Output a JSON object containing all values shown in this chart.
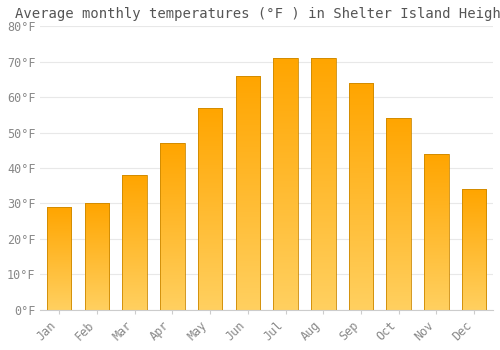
{
  "title": "Average monthly temperatures (°F ) in Shelter Island Heights",
  "months": [
    "Jan",
    "Feb",
    "Mar",
    "Apr",
    "May",
    "Jun",
    "Jul",
    "Aug",
    "Sep",
    "Oct",
    "Nov",
    "Dec"
  ],
  "values": [
    29,
    30,
    38,
    47,
    57,
    66,
    71,
    71,
    64,
    54,
    44,
    34
  ],
  "bar_color": "#FFA500",
  "bar_color_light": "#FFD060",
  "bar_edge_color": "#CC8800",
  "ylim": [
    0,
    80
  ],
  "yticks": [
    0,
    10,
    20,
    30,
    40,
    50,
    60,
    70,
    80
  ],
  "ytick_labels": [
    "0°F",
    "10°F",
    "20°F",
    "30°F",
    "40°F",
    "50°F",
    "60°F",
    "70°F",
    "80°F"
  ],
  "background_color": "#FFFFFF",
  "grid_color": "#E8E8E8",
  "title_fontsize": 10,
  "tick_fontsize": 8.5
}
